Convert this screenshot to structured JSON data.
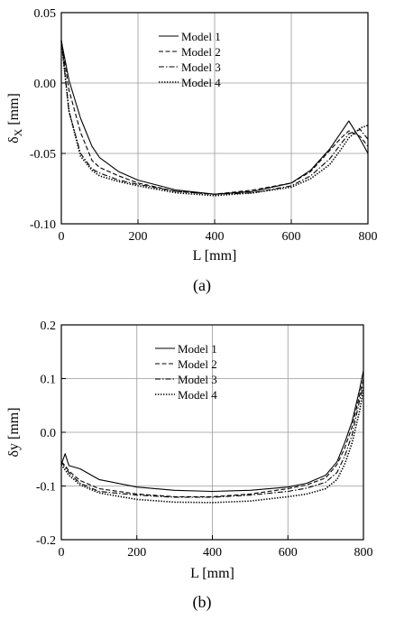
{
  "chart_data": [
    {
      "type": "line",
      "panel_label": "(a)",
      "xlabel": "L [mm]",
      "ylabel": "δX [mm]",
      "ylabel_main": "δ",
      "ylabel_sub": "X",
      "ylabel_unit": "[mm]",
      "xlim": [
        0,
        800
      ],
      "ylim": [
        -0.1,
        0.05
      ],
      "xticks": [
        0,
        200,
        400,
        600,
        800
      ],
      "xtick_labels": [
        "0",
        "200",
        "400",
        "600",
        "800"
      ],
      "yticks": [
        -0.1,
        -0.05,
        0.0,
        0.05
      ],
      "ytick_labels": [
        "-0.10",
        "-0.05",
        "0.00",
        "0.05"
      ],
      "grid": true,
      "legend_position": "top-center",
      "series": [
        {
          "name": "Model 1",
          "dash": "solid",
          "x": [
            0,
            20,
            50,
            80,
            100,
            150,
            200,
            300,
            400,
            500,
            600,
            650,
            700,
            730,
            750,
            780,
            800
          ],
          "y": [
            0.03,
            0.002,
            -0.025,
            -0.045,
            -0.053,
            -0.063,
            -0.069,
            -0.076,
            -0.079,
            -0.077,
            -0.071,
            -0.062,
            -0.047,
            -0.035,
            -0.027,
            -0.04,
            -0.05
          ]
        },
        {
          "name": "Model 2",
          "dash": "dashed",
          "x": [
            0,
            20,
            50,
            80,
            100,
            150,
            200,
            300,
            400,
            500,
            600,
            650,
            700,
            730,
            750,
            780,
            800
          ],
          "y": [
            0.03,
            -0.005,
            -0.035,
            -0.055,
            -0.06,
            -0.066,
            -0.071,
            -0.077,
            -0.079,
            -0.076,
            -0.071,
            -0.063,
            -0.048,
            -0.039,
            -0.034,
            -0.038,
            -0.045
          ]
        },
        {
          "name": "Model 3",
          "dash": "dashdot",
          "x": [
            0,
            20,
            50,
            80,
            100,
            150,
            200,
            300,
            400,
            500,
            600,
            650,
            700,
            730,
            750,
            780,
            800
          ],
          "y": [
            0.03,
            -0.02,
            -0.05,
            -0.061,
            -0.064,
            -0.069,
            -0.072,
            -0.077,
            -0.079,
            -0.078,
            -0.073,
            -0.066,
            -0.054,
            -0.043,
            -0.036,
            -0.033,
            -0.04
          ]
        },
        {
          "name": "Model 4",
          "dash": "dotted",
          "x": [
            0,
            20,
            50,
            80,
            100,
            150,
            200,
            300,
            400,
            500,
            600,
            650,
            700,
            730,
            750,
            780,
            800
          ],
          "y": [
            0.03,
            -0.02,
            -0.052,
            -0.062,
            -0.066,
            -0.07,
            -0.073,
            -0.078,
            -0.08,
            -0.078,
            -0.074,
            -0.068,
            -0.058,
            -0.047,
            -0.039,
            -0.032,
            -0.03
          ]
        }
      ]
    },
    {
      "type": "line",
      "panel_label": "(b)",
      "xlabel": "L [mm]",
      "ylabel": "δy [mm]",
      "ylabel_main": "δy",
      "ylabel_sub": "",
      "ylabel_unit": "[mm]",
      "xlim": [
        0,
        800
      ],
      "ylim": [
        -0.2,
        0.2
      ],
      "xticks": [
        0,
        200,
        400,
        600,
        800
      ],
      "xtick_labels": [
        "0",
        "200",
        "400",
        "600",
        "800"
      ],
      "yticks": [
        -0.2,
        -0.1,
        0.0,
        0.1,
        0.2
      ],
      "ytick_labels": [
        "-0.2",
        "-0.1",
        "0.0",
        "0.1",
        "0.2"
      ],
      "grid": true,
      "legend_position": "top-center",
      "series": [
        {
          "name": "Model 1",
          "dash": "solid",
          "x": [
            0,
            10,
            20,
            50,
            100,
            200,
            300,
            400,
            500,
            600,
            650,
            700,
            730,
            750,
            770,
            790,
            800
          ],
          "y": [
            -0.06,
            -0.04,
            -0.062,
            -0.068,
            -0.088,
            -0.102,
            -0.108,
            -0.11,
            -0.108,
            -0.102,
            -0.095,
            -0.08,
            -0.055,
            -0.02,
            0.02,
            0.08,
            0.115
          ]
        },
        {
          "name": "Model 2",
          "dash": "dashed",
          "x": [
            0,
            10,
            20,
            50,
            100,
            200,
            300,
            400,
            500,
            600,
            650,
            700,
            730,
            750,
            770,
            790,
            800
          ],
          "y": [
            -0.055,
            -0.062,
            -0.072,
            -0.09,
            -0.105,
            -0.115,
            -0.12,
            -0.12,
            -0.115,
            -0.105,
            -0.098,
            -0.085,
            -0.06,
            -0.03,
            0.01,
            0.07,
            0.1
          ]
        },
        {
          "name": "Model 3",
          "dash": "dashdot",
          "x": [
            0,
            10,
            20,
            50,
            100,
            200,
            300,
            400,
            500,
            600,
            650,
            700,
            730,
            750,
            770,
            790,
            800
          ],
          "y": [
            -0.055,
            -0.065,
            -0.075,
            -0.095,
            -0.11,
            -0.117,
            -0.121,
            -0.121,
            -0.117,
            -0.11,
            -0.104,
            -0.093,
            -0.075,
            -0.045,
            -0.005,
            0.06,
            0.09
          ]
        },
        {
          "name": "Model 4",
          "dash": "dotted",
          "x": [
            0,
            10,
            20,
            50,
            100,
            200,
            300,
            400,
            500,
            600,
            650,
            700,
            730,
            750,
            770,
            790,
            800
          ],
          "y": [
            -0.06,
            -0.07,
            -0.08,
            -0.098,
            -0.113,
            -0.125,
            -0.13,
            -0.131,
            -0.128,
            -0.12,
            -0.115,
            -0.105,
            -0.088,
            -0.06,
            -0.02,
            0.04,
            0.08
          ]
        }
      ]
    }
  ]
}
